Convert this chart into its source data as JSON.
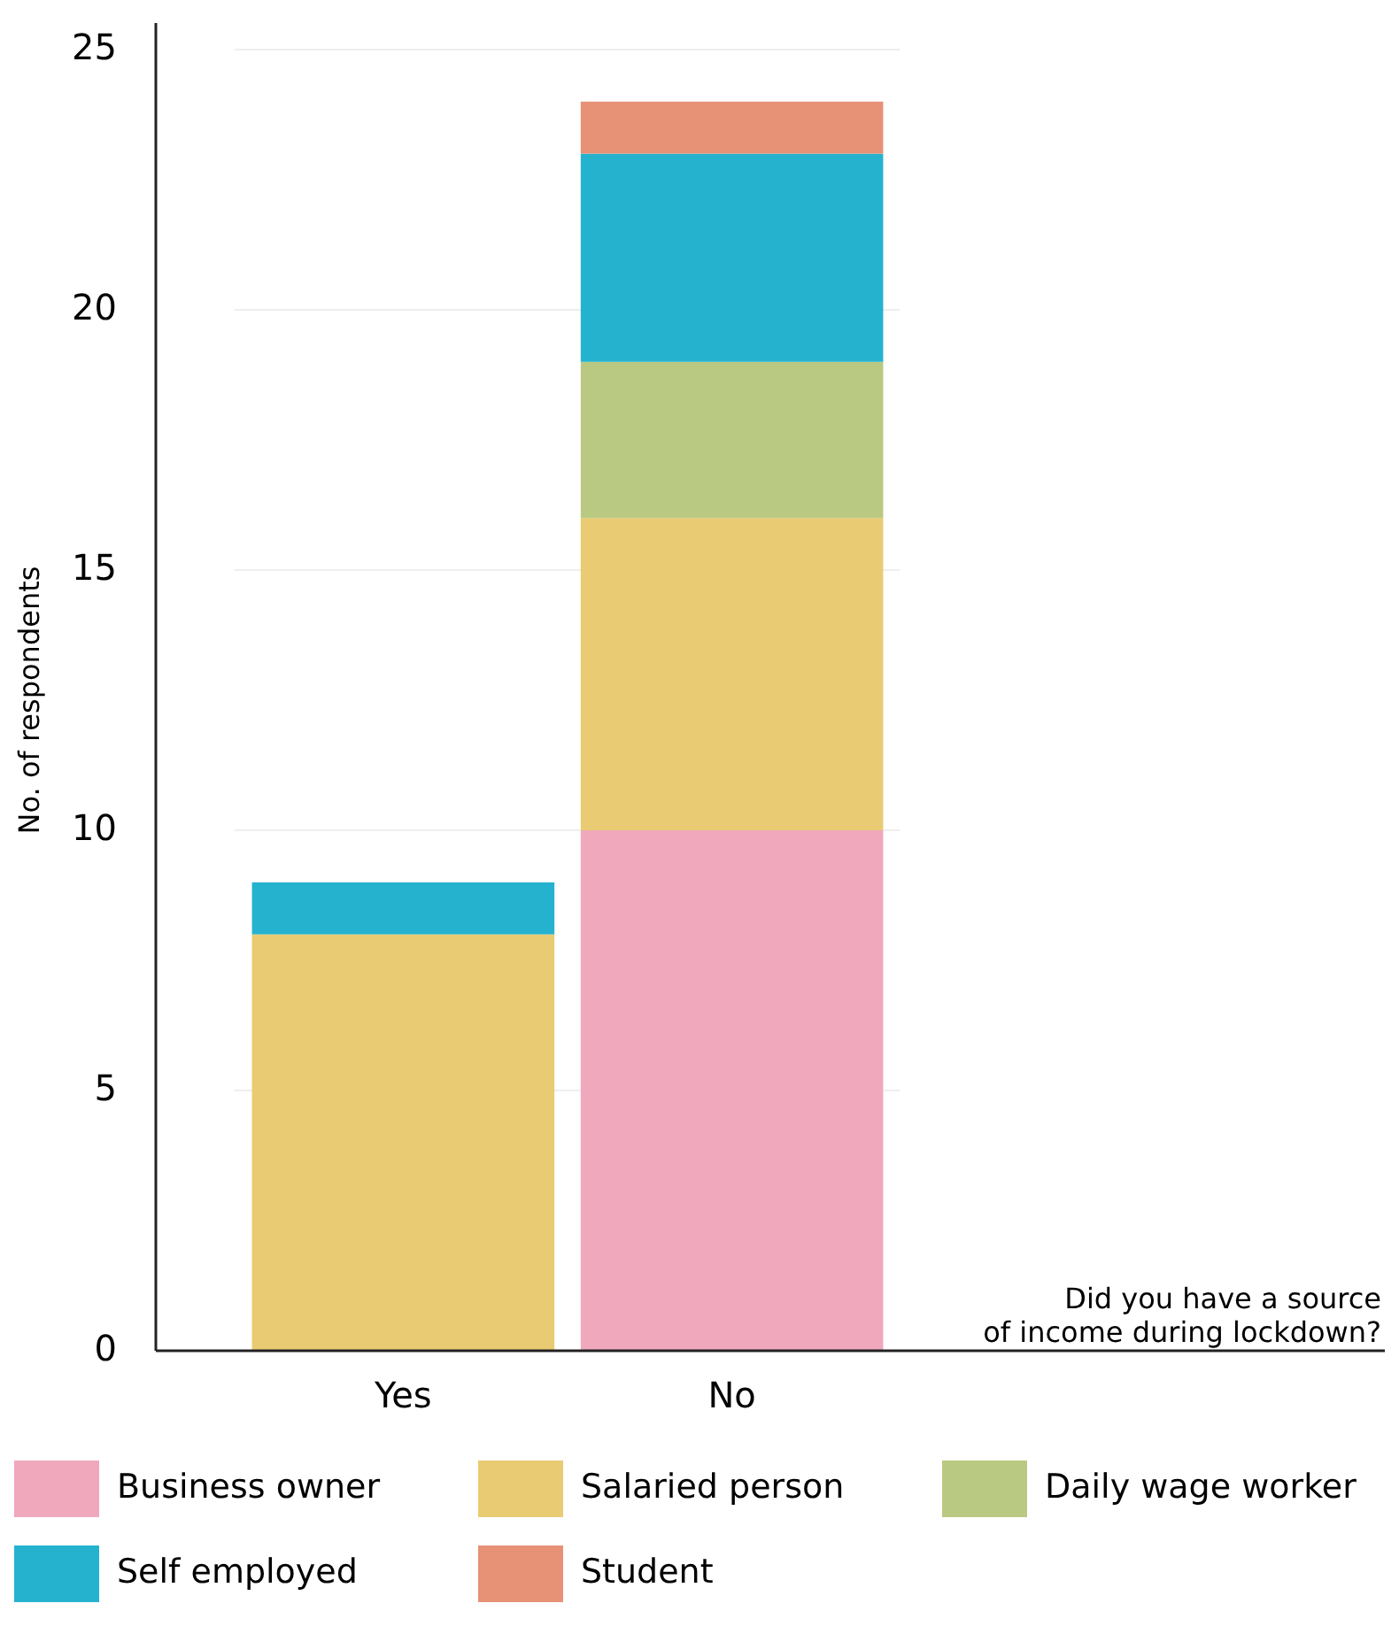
{
  "chart_data": {
    "type": "bar",
    "stacked": true,
    "xlabel": "Did you have a source of income during lockdown?",
    "ylabel": "No. of respondents",
    "categories": [
      "Yes",
      "No"
    ],
    "series": [
      {
        "name": "Business owner",
        "color": "#f0a8bc",
        "values": [
          0,
          10
        ]
      },
      {
        "name": "Salaried person",
        "color": "#e8cb72",
        "values": [
          8,
          6
        ]
      },
      {
        "name": "Daily wage worker",
        "color": "#bac981",
        "values": [
          0,
          3
        ]
      },
      {
        "name": "Self employed",
        "color": "#25b2cf",
        "values": [
          1,
          4
        ]
      },
      {
        "name": "Student",
        "color": "#e79176",
        "values": [
          0,
          1
        ]
      }
    ],
    "ylim": [
      0,
      25
    ],
    "yticks": [
      0,
      5,
      10,
      15,
      20,
      25
    ],
    "grid": "y",
    "legend": "bottom"
  }
}
